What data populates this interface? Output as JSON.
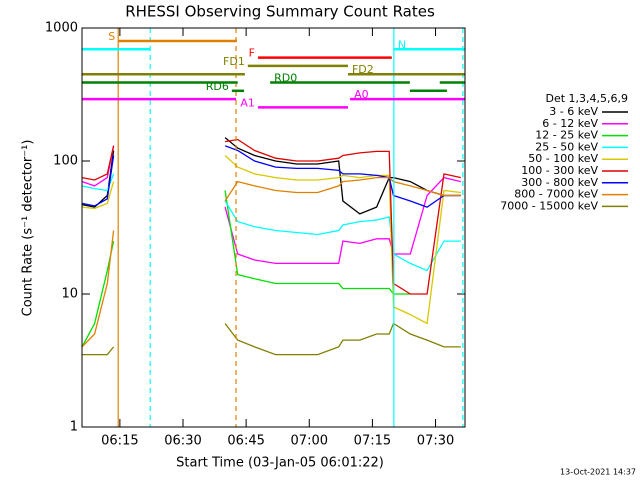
{
  "chart_data": {
    "type": "line",
    "title": "RHESSI Observing Summary Count Rates",
    "xlabel": "Start Time (03-Jan-05 06:01:22)",
    "ylabel": "Count Rate (s⁻¹ detector⁻¹)",
    "footer": "13-Oct-2021 14:37",
    "legend_title": "Det 1,3,4,5,6,9",
    "log_y": true,
    "xlim": [
      6,
      97
    ],
    "ylim": [
      1,
      1000
    ],
    "xticks": [
      {
        "value": 15,
        "label": "06:15"
      },
      {
        "value": 30,
        "label": "06:30"
      },
      {
        "value": 45,
        "label": "06:45"
      },
      {
        "value": 60,
        "label": "07:00"
      },
      {
        "value": 75,
        "label": "07:15"
      },
      {
        "value": 90,
        "label": "07:30"
      }
    ],
    "yticks": [
      1,
      10,
      100,
      1000
    ],
    "x": [
      6,
      9,
      12,
      13.5,
      26,
      40,
      43,
      47,
      52,
      57,
      62,
      67,
      68,
      72,
      76,
      79,
      80,
      84,
      88,
      92,
      96
    ],
    "series": [
      {
        "name": "3 - 6 keV",
        "color": "#000000",
        "values": [
          47,
          45,
          55,
          120,
          null,
          150,
          125,
          110,
          100,
          95,
          95,
          100,
          50,
          40,
          45,
          75,
          75,
          70,
          60,
          55,
          55
        ]
      },
      {
        "name": "6 - 12 keV",
        "color": "#ff00ff",
        "values": [
          70,
          65,
          75,
          130,
          null,
          45,
          20,
          18,
          17,
          17,
          17,
          17,
          25,
          24,
          26,
          26,
          20,
          20,
          55,
          75,
          70
        ]
      },
      {
        "name": "12 - 25 keV",
        "color": "#00e000",
        "values": [
          4,
          6,
          15,
          25,
          null,
          60,
          14,
          13,
          12,
          12,
          12,
          12,
          11,
          11,
          11,
          11,
          10,
          10,
          null,
          null,
          null
        ]
      },
      {
        "name": "25 - 50 keV",
        "color": "#00ffff",
        "values": [
          65,
          62,
          60,
          80,
          null,
          50,
          35,
          32,
          30,
          29,
          28,
          30,
          33,
          35,
          36,
          38,
          20,
          17,
          15,
          25,
          25
        ]
      },
      {
        "name": "50 - 100 keV",
        "color": "#d8c800",
        "values": [
          45,
          44,
          48,
          70,
          null,
          110,
          90,
          80,
          75,
          72,
          72,
          75,
          78,
          75,
          78,
          78,
          8,
          7,
          6,
          60,
          58
        ]
      },
      {
        "name": "100 - 300 keV",
        "color": "#e00000",
        "values": [
          75,
          72,
          80,
          130,
          null,
          140,
          145,
          120,
          105,
          100,
          100,
          105,
          110,
          115,
          118,
          118,
          12,
          10,
          10,
          80,
          75
        ]
      },
      {
        "name": "300 - 800 keV",
        "color": "#0000ff",
        "values": [
          48,
          46,
          52,
          110,
          null,
          130,
          120,
          100,
          90,
          88,
          88,
          85,
          80,
          80,
          78,
          75,
          55,
          50,
          45,
          55,
          55
        ]
      },
      {
        "name": "800 - 7000 keV",
        "color": "#e08000",
        "values": [
          4,
          5,
          12,
          30,
          null,
          50,
          70,
          65,
          60,
          58,
          58,
          65,
          70,
          72,
          75,
          75,
          70,
          65,
          60,
          55,
          55
        ]
      },
      {
        "name": "7000 - 15000 keV",
        "color": "#808000",
        "values": [
          3.5,
          3.5,
          3.5,
          4,
          null,
          6,
          4.5,
          4,
          3.5,
          3.5,
          3.5,
          4,
          4.5,
          4.5,
          5,
          5,
          6,
          5,
          4.5,
          4,
          4
        ]
      }
    ],
    "flags": [
      {
        "label": "S",
        "color": "#e08000",
        "segments": [
          [
            14.6,
            42.8
          ]
        ]
      },
      {
        "label": "N",
        "color": "#00ffff",
        "segments": [
          [
            6,
            22.2
          ],
          [
            80.1,
            97
          ]
        ]
      },
      {
        "label": "F",
        "color": "#ff0000",
        "segments": [
          [
            47.8,
            79.6
          ]
        ]
      },
      {
        "label": "FD1",
        "color": "#808000",
        "segments": [
          [
            45.4,
            69.2
          ]
        ]
      },
      {
        "label": "FD2",
        "color": "#808000",
        "segments": [
          [
            6,
            44.7
          ],
          [
            69.2,
            97
          ]
        ]
      },
      {
        "label": "RD0",
        "color": "#008000",
        "segments": [
          [
            6,
            43
          ],
          [
            50.7,
            83.9
          ],
          [
            91,
            97
          ]
        ]
      },
      {
        "label": "RD6",
        "color": "#008000",
        "segments": [
          [
            41.6,
            44.5
          ],
          [
            83.9,
            92.7
          ]
        ]
      },
      {
        "label": "A0",
        "color": "#ff00ff",
        "segments": [
          [
            6,
            42.6
          ],
          [
            69.7,
            97
          ]
        ]
      },
      {
        "label": "A1",
        "color": "#ff00ff",
        "segments": [
          [
            47.8,
            69.2
          ]
        ]
      }
    ],
    "markers": [
      {
        "x": 14.6,
        "color": "#e08000",
        "dashed": false
      },
      {
        "x": 22.2,
        "color": "#00ffff",
        "dashed": true
      },
      {
        "x": 42.6,
        "color": "#e08000",
        "dashed": true
      },
      {
        "x": 80.1,
        "color": "#00ffff",
        "dashed": false
      },
      {
        "x": 96.5,
        "color": "#00ffff",
        "dashed": true
      }
    ]
  }
}
